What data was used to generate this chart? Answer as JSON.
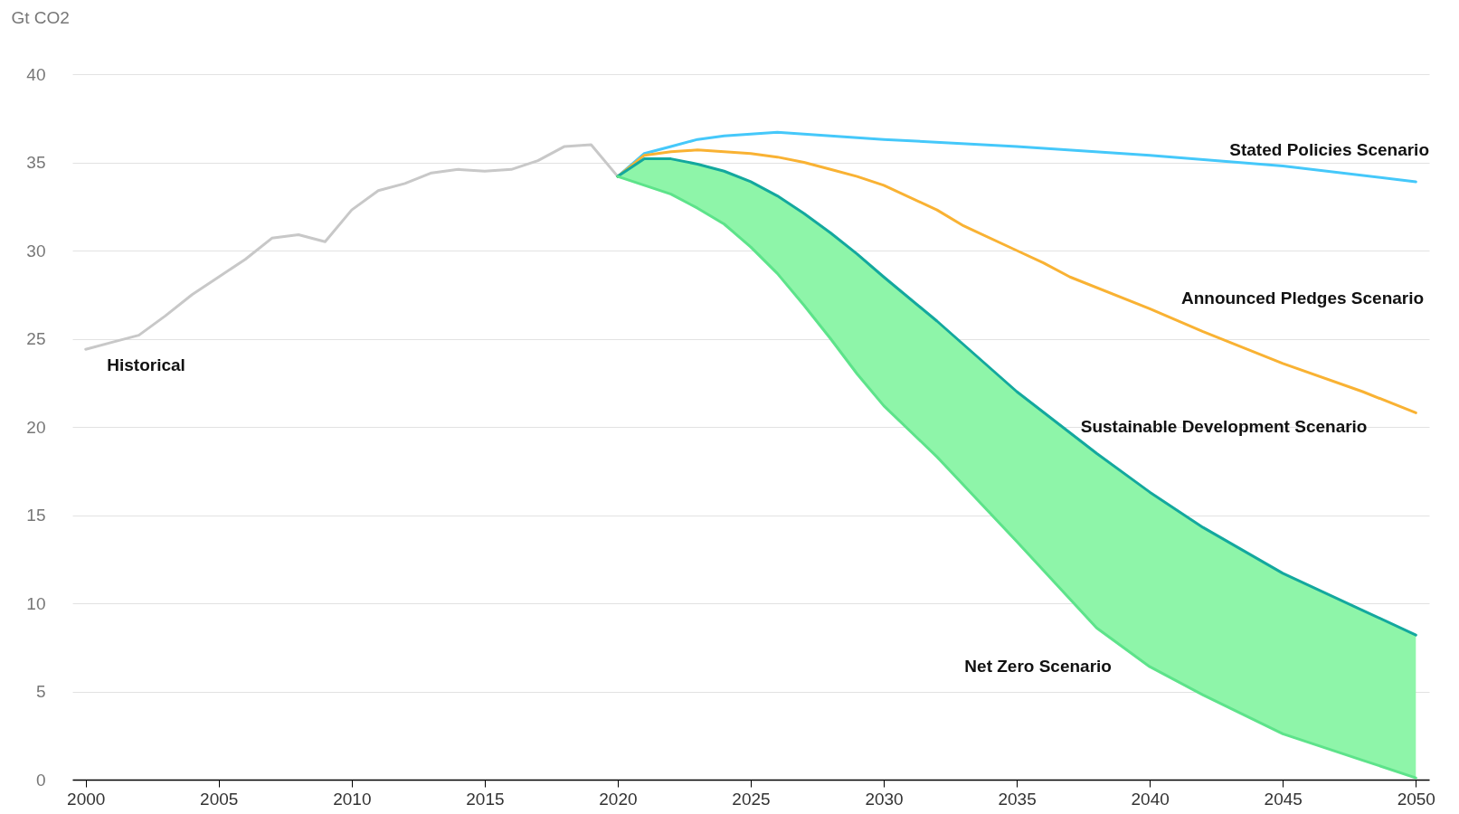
{
  "chart_data": {
    "type": "line",
    "ylabel": "Gt CO2",
    "xlim": [
      1999.5,
      2050.5
    ],
    "xticks": [
      2000,
      2005,
      2010,
      2015,
      2020,
      2025,
      2030,
      2035,
      2040,
      2045,
      2050
    ],
    "ylim": [
      0,
      40
    ],
    "yticks": [
      0,
      5,
      10,
      15,
      20,
      25,
      30,
      35,
      40
    ],
    "grid": "y",
    "series": [
      {
        "name": "Historical",
        "color": "#c8c8c8",
        "x": [
          2000,
          2001,
          2002,
          2003,
          2004,
          2005,
          2006,
          2007,
          2008,
          2009,
          2010,
          2011,
          2012,
          2013,
          2014,
          2015,
          2016,
          2017,
          2018,
          2019,
          2020
        ],
        "values": [
          24.4,
          24.8,
          25.2,
          26.3,
          27.5,
          28.5,
          29.5,
          30.7,
          30.9,
          30.5,
          32.3,
          33.4,
          33.8,
          34.4,
          34.6,
          34.5,
          34.6,
          35.1,
          35.9,
          36.0,
          34.2
        ]
      },
      {
        "name": "Stated Policies Scenario",
        "color": "#45c8fa",
        "x": [
          2020,
          2021,
          2022,
          2023,
          2024,
          2025,
          2026,
          2027,
          2030,
          2035,
          2040,
          2045,
          2050
        ],
        "values": [
          34.2,
          35.5,
          35.9,
          36.3,
          36.5,
          36.6,
          36.7,
          36.6,
          36.3,
          35.9,
          35.4,
          34.8,
          33.9
        ]
      },
      {
        "name": "Announced Pledges Scenario",
        "color": "#f9b233",
        "x": [
          2020,
          2021,
          2022,
          2023,
          2024,
          2025,
          2026,
          2027,
          2028,
          2029,
          2030,
          2032,
          2033,
          2035,
          2036,
          2037,
          2040,
          2042,
          2045,
          2048,
          2050
        ],
        "values": [
          34.2,
          35.4,
          35.6,
          35.7,
          35.6,
          35.5,
          35.3,
          35.0,
          34.6,
          34.2,
          33.7,
          32.3,
          31.4,
          30.0,
          29.3,
          28.5,
          26.7,
          25.4,
          23.6,
          22.0,
          20.8
        ]
      },
      {
        "name": "Sustainable Development Scenario",
        "color": "#13a89e",
        "x": [
          2020,
          2021,
          2022,
          2023,
          2024,
          2025,
          2026,
          2027,
          2028,
          2029,
          2030,
          2032,
          2035,
          2038,
          2040,
          2042,
          2045,
          2048,
          2050
        ],
        "values": [
          34.2,
          35.2,
          35.2,
          34.9,
          34.5,
          33.9,
          33.1,
          32.1,
          31.0,
          29.8,
          28.5,
          26.0,
          22.0,
          18.5,
          16.3,
          14.3,
          11.7,
          9.6,
          8.2
        ]
      },
      {
        "name": "Net Zero Scenario",
        "color": "#5de38a",
        "x": [
          2020,
          2021,
          2022,
          2023,
          2024,
          2025,
          2026,
          2027,
          2028,
          2029,
          2030,
          2032,
          2035,
          2038,
          2040,
          2042,
          2045,
          2048,
          2050
        ],
        "values": [
          34.2,
          33.7,
          33.2,
          32.4,
          31.5,
          30.2,
          28.7,
          26.9,
          25.0,
          23.0,
          21.2,
          18.3,
          13.5,
          8.6,
          6.4,
          4.8,
          2.6,
          1.1,
          0.1
        ],
        "lower": [
          34.2,
          33.7,
          33.2,
          32.4,
          31.5,
          30.2,
          28.7,
          26.9,
          25.0,
          23.0,
          21.2,
          18.3,
          13.5,
          8.6,
          6.4,
          4.8,
          2.6,
          1.1,
          0.1
        ],
        "upper": [
          34.2,
          35.2,
          35.2,
          34.9,
          34.5,
          33.9,
          33.1,
          32.1,
          31.0,
          29.8,
          28.5,
          26.0,
          22.0,
          18.5,
          16.3,
          14.3,
          11.7,
          9.6,
          8.2
        ]
      }
    ]
  }
}
